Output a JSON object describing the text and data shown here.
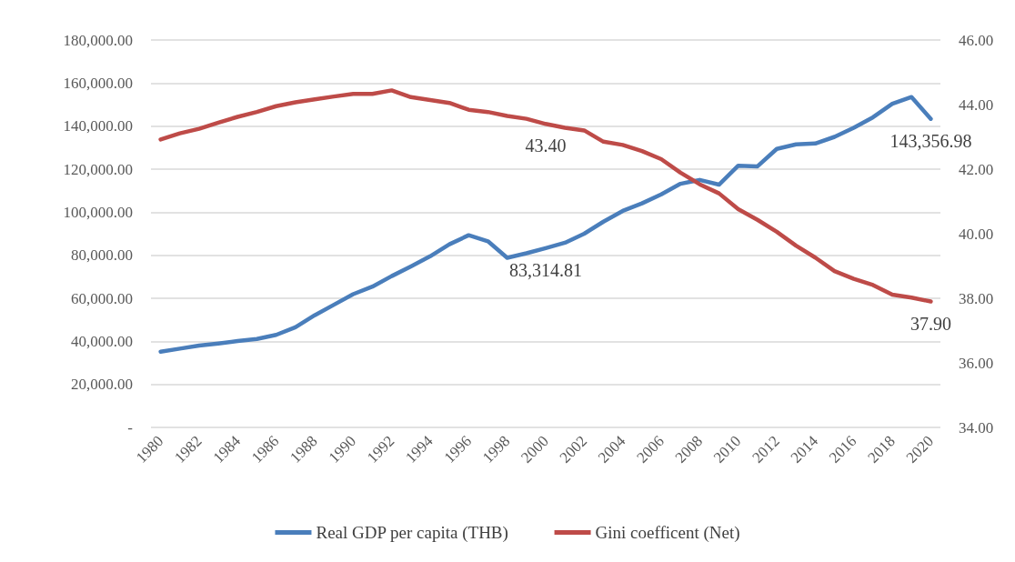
{
  "chart_data": {
    "type": "line",
    "categories": [
      "1980",
      null,
      "1982",
      null,
      "1984",
      null,
      "1986",
      null,
      "1988",
      null,
      "1990",
      null,
      "1992",
      null,
      "1994",
      null,
      "1996",
      null,
      "1998",
      null,
      "2000",
      null,
      "2002",
      null,
      "2004",
      null,
      "2006",
      null,
      "2008",
      null,
      "2010",
      null,
      "2012",
      null,
      "2014",
      null,
      "2016",
      null,
      "2018",
      null,
      "2020"
    ],
    "series": [
      {
        "name": "Real GDP per capita (THB)",
        "color": "#4a7ebb",
        "values": [
          35200,
          36600,
          38000,
          39000,
          40100,
          41100,
          43000,
          46500,
          52100,
          57000,
          61900,
          65400,
          70300,
          74800,
          79500,
          85100,
          89300,
          86500,
          78800,
          80900,
          83314.81,
          85800,
          90000,
          95600,
          100600,
          104100,
          108300,
          113200,
          115000,
          112800,
          121600,
          121300,
          129400,
          131500,
          131900,
          135000,
          139200,
          144100,
          150400,
          153500,
          143356.98
        ],
        "value_labels": [
          null,
          null,
          null,
          null,
          null,
          null,
          null,
          null,
          null,
          null,
          null,
          null,
          null,
          null,
          null,
          null,
          null,
          null,
          null,
          null,
          "83,314.81",
          null,
          null,
          null,
          null,
          null,
          null,
          null,
          null,
          null,
          null,
          null,
          null,
          null,
          null,
          null,
          null,
          null,
          null,
          null,
          "143,356.98"
        ]
      },
      {
        "name": "Gini coefficent (Net)",
        "color": "#be4b48",
        "axis": "y2",
        "values": [
          42.92,
          43.11,
          43.25,
          43.44,
          43.62,
          43.77,
          43.95,
          44.07,
          44.16,
          44.25,
          44.33,
          44.33,
          44.44,
          44.23,
          44.14,
          44.05,
          43.84,
          43.77,
          43.65,
          43.56,
          43.4,
          43.28,
          43.2,
          42.85,
          42.75,
          42.56,
          42.31,
          41.89,
          41.53,
          41.25,
          40.76,
          40.43,
          40.06,
          39.63,
          39.26,
          38.84,
          38.6,
          38.41,
          38.11,
          38.02,
          37.9
        ],
        "value_labels": [
          null,
          null,
          null,
          null,
          null,
          null,
          null,
          null,
          null,
          null,
          null,
          null,
          null,
          null,
          null,
          null,
          null,
          null,
          null,
          null,
          "43.40",
          null,
          null,
          null,
          null,
          null,
          null,
          null,
          null,
          null,
          null,
          null,
          null,
          null,
          null,
          null,
          null,
          null,
          null,
          null,
          "37.90"
        ]
      }
    ],
    "ylim": [
      0,
      180000
    ],
    "yticks": [
      {
        "value": 0,
        "label": "-"
      },
      {
        "value": 20000,
        "label": "20,000.00"
      },
      {
        "value": 40000,
        "label": "40,000.00"
      },
      {
        "value": 60000,
        "label": "60,000.00"
      },
      {
        "value": 80000,
        "label": "80,000.00"
      },
      {
        "value": 100000,
        "label": "100,000.00"
      },
      {
        "value": 120000,
        "label": "120,000.00"
      },
      {
        "value": 140000,
        "label": "140,000.00"
      },
      {
        "value": 160000,
        "label": "160,000.00"
      },
      {
        "value": 180000,
        "label": "180,000.00"
      }
    ],
    "y2lim": [
      34,
      46
    ],
    "y2ticks": [
      {
        "value": 34,
        "label": "34.00"
      },
      {
        "value": 36,
        "label": "36.00"
      },
      {
        "value": 38,
        "label": "38.00"
      },
      {
        "value": 40,
        "label": "40.00"
      },
      {
        "value": 42,
        "label": "42.00"
      },
      {
        "value": 44,
        "label": "44.00"
      },
      {
        "value": 46,
        "label": "46.00"
      }
    ],
    "grid": "y",
    "legend": "bottom",
    "marker": "none",
    "line_style": "solid"
  }
}
